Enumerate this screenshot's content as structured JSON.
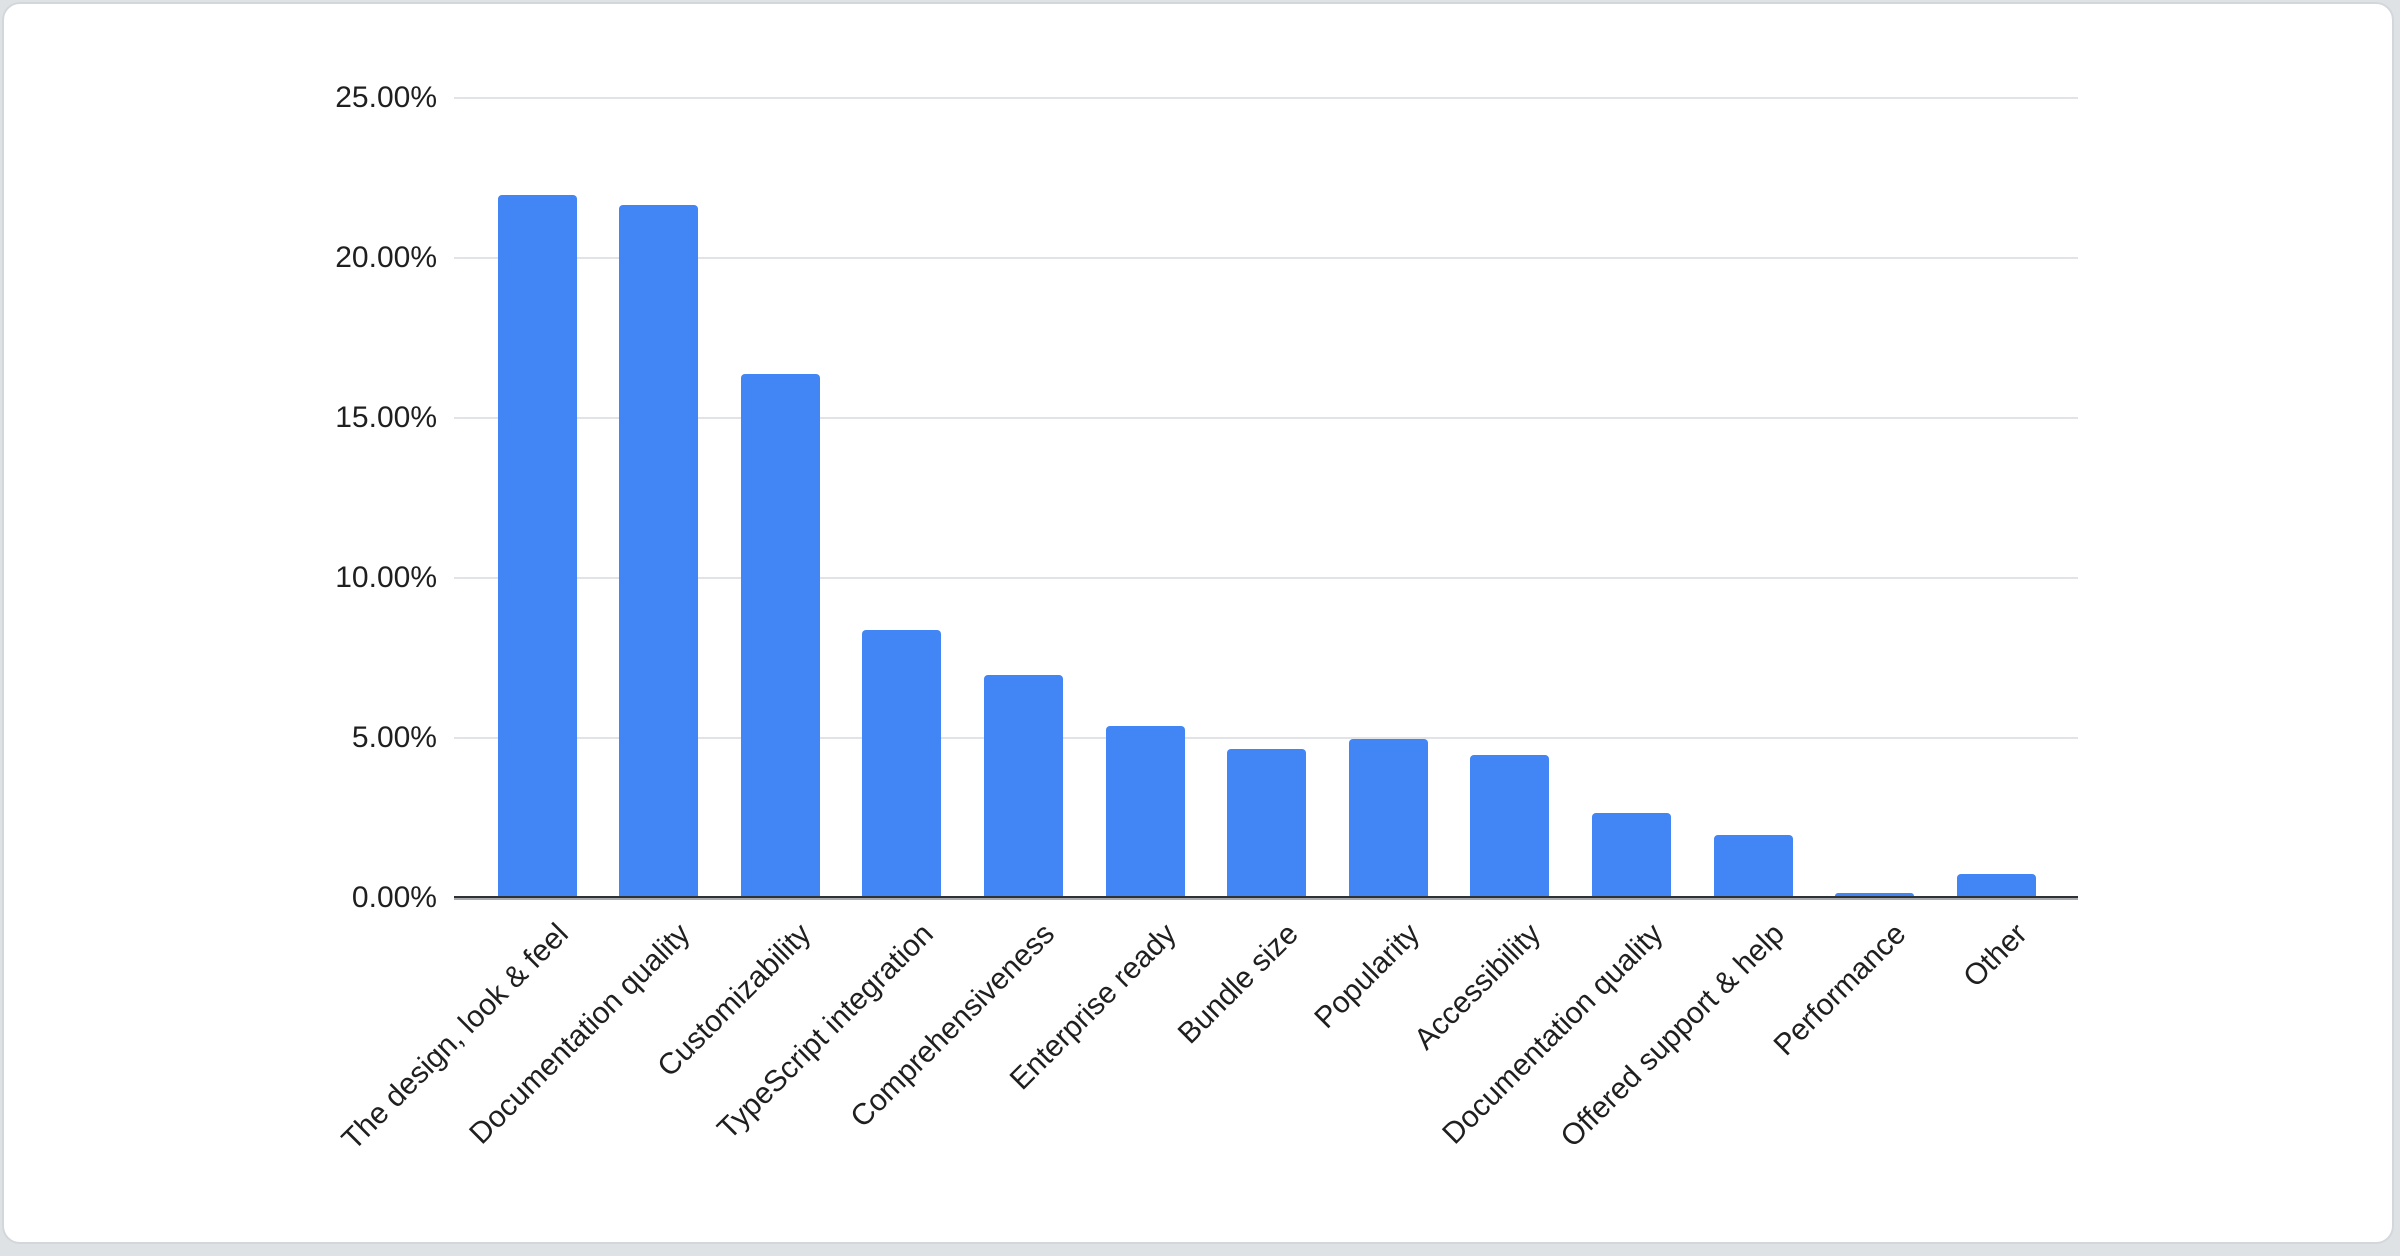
{
  "page": {
    "background_color": "#dfe2e5"
  },
  "card": {
    "background_color": "#ffffff",
    "border_color": "#d3d7db"
  },
  "chart_data": {
    "type": "bar",
    "title": "",
    "xlabel": "",
    "ylabel": "",
    "categories": [
      "The design, look & feel",
      "Documentation quality",
      "Customizability",
      "TypeScript integration",
      "Comprehensiveness",
      "Enterprise ready",
      "Bundle size",
      "Popularity",
      "Accessibility",
      "Documentation quality",
      "Offered support & help",
      "Performance",
      "Other"
    ],
    "values": [
      21.9,
      21.6,
      16.3,
      8.3,
      6.9,
      5.3,
      4.6,
      4.9,
      4.4,
      2.6,
      1.9,
      0.1,
      0.7
    ],
    "unit": "%",
    "ylim": [
      0,
      25
    ],
    "ytick_step": 5,
    "ytick_labels": [
      "0.00%",
      "5.00%",
      "10.00%",
      "15.00%",
      "20.00%",
      "25.00%"
    ],
    "grid": true,
    "legend_position": "none",
    "bar_color": "#4285F4",
    "gridline_color": "#e1e3e6",
    "axis_line_color": "#2f3134",
    "label_color": "#1f1f1f"
  }
}
